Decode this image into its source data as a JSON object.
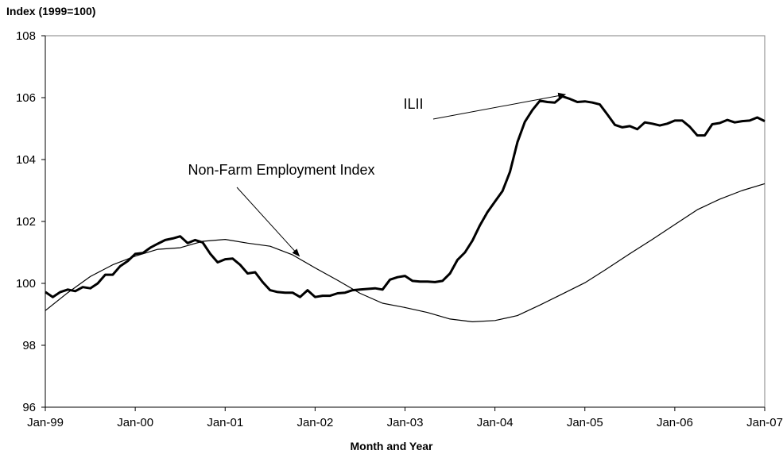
{
  "chart_data": {
    "type": "line",
    "ylabel": "Index (1999=100)",
    "xlabel": "Month and Year",
    "ylim": [
      96,
      108
    ],
    "yticks": [
      96,
      98,
      100,
      102,
      104,
      106,
      108
    ],
    "xticks": [
      "Jan-99",
      "Jan-00",
      "Jan-01",
      "Jan-02",
      "Jan-03",
      "Jan-04",
      "Jan-05",
      "Jan-06",
      "Jan-07"
    ],
    "grid": false,
    "series": [
      {
        "name": "ILII",
        "color": "#000000",
        "x": [
          0,
          1,
          2,
          3,
          4,
          5,
          6,
          7,
          8,
          9,
          10,
          11,
          12,
          13,
          14,
          15,
          16,
          17,
          18,
          19,
          20,
          21,
          22,
          23,
          24,
          25,
          26,
          27,
          28,
          29,
          30,
          31,
          32,
          33,
          34,
          35,
          36,
          37,
          38,
          39,
          40,
          41,
          42,
          43,
          44,
          45,
          46,
          47,
          48,
          49,
          50,
          51,
          52,
          53,
          54,
          55,
          56,
          57,
          58,
          59,
          60,
          61,
          62,
          63,
          64,
          65,
          66,
          67,
          68,
          69,
          70,
          71,
          72,
          73,
          74,
          75,
          76,
          77,
          78,
          79,
          80,
          81,
          82,
          83,
          84,
          85,
          86,
          87,
          88,
          89,
          90,
          91,
          92,
          93,
          94,
          95,
          96
        ],
        "y": [
          99.72,
          99.56,
          99.72,
          99.8,
          99.75,
          99.88,
          99.84,
          100,
          100.28,
          100.28,
          100.56,
          100.72,
          100.95,
          100.98,
          101.15,
          101.28,
          101.4,
          101.45,
          101.52,
          101.3,
          101.4,
          101.32,
          100.96,
          100.68,
          100.78,
          100.8,
          100.6,
          100.32,
          100.36,
          100.04,
          99.78,
          99.72,
          99.7,
          99.7,
          99.56,
          99.78,
          99.56,
          99.6,
          99.6,
          99.68,
          99.7,
          99.78,
          99.8,
          99.82,
          99.84,
          99.8,
          100.12,
          100.2,
          100.24,
          100.08,
          100.06,
          100.06,
          100.04,
          100.08,
          100.32,
          100.76,
          101,
          101.38,
          101.88,
          102.3,
          102.64,
          102.98,
          103.6,
          104.56,
          105.22,
          105.6,
          105.9,
          105.86,
          105.84,
          106.04,
          105.96,
          105.86,
          105.88,
          105.84,
          105.78,
          105.46,
          105.12,
          105.04,
          105.08,
          104.98,
          105.2,
          105.16,
          105.1,
          105.16,
          105.26,
          105.26,
          105.06,
          104.78,
          104.78,
          105.14,
          105.18,
          105.28,
          105.2,
          105.24,
          105.26,
          105.36,
          105.24
        ]
      },
      {
        "name": "Non-Farm Employment Index",
        "color": "#000000",
        "x": [
          0,
          3,
          6,
          9,
          12,
          15,
          18,
          21,
          24,
          27,
          30,
          33,
          36,
          39,
          42,
          45,
          48,
          51,
          54,
          57,
          60,
          63,
          66,
          69,
          72,
          75,
          78,
          81,
          84,
          87,
          90,
          93,
          96
        ],
        "y": [
          99.12,
          99.7,
          100.22,
          100.6,
          100.88,
          101.1,
          101.15,
          101.36,
          101.42,
          101.3,
          101.2,
          100.92,
          100.5,
          100.1,
          99.68,
          99.36,
          99.22,
          99.06,
          98.85,
          98.76,
          98.8,
          98.96,
          99.3,
          99.66,
          100.02,
          100.48,
          100.96,
          101.42,
          101.9,
          102.38,
          102.72,
          103.0,
          103.22
        ]
      }
    ],
    "annotations": [
      {
        "text": "ILII",
        "series": "ILII",
        "arrow_to_x": 69.5
      },
      {
        "text": "Non-Farm Employment Index",
        "series": "Non-Farm Employment Index",
        "arrow_to_x": 34
      }
    ]
  }
}
